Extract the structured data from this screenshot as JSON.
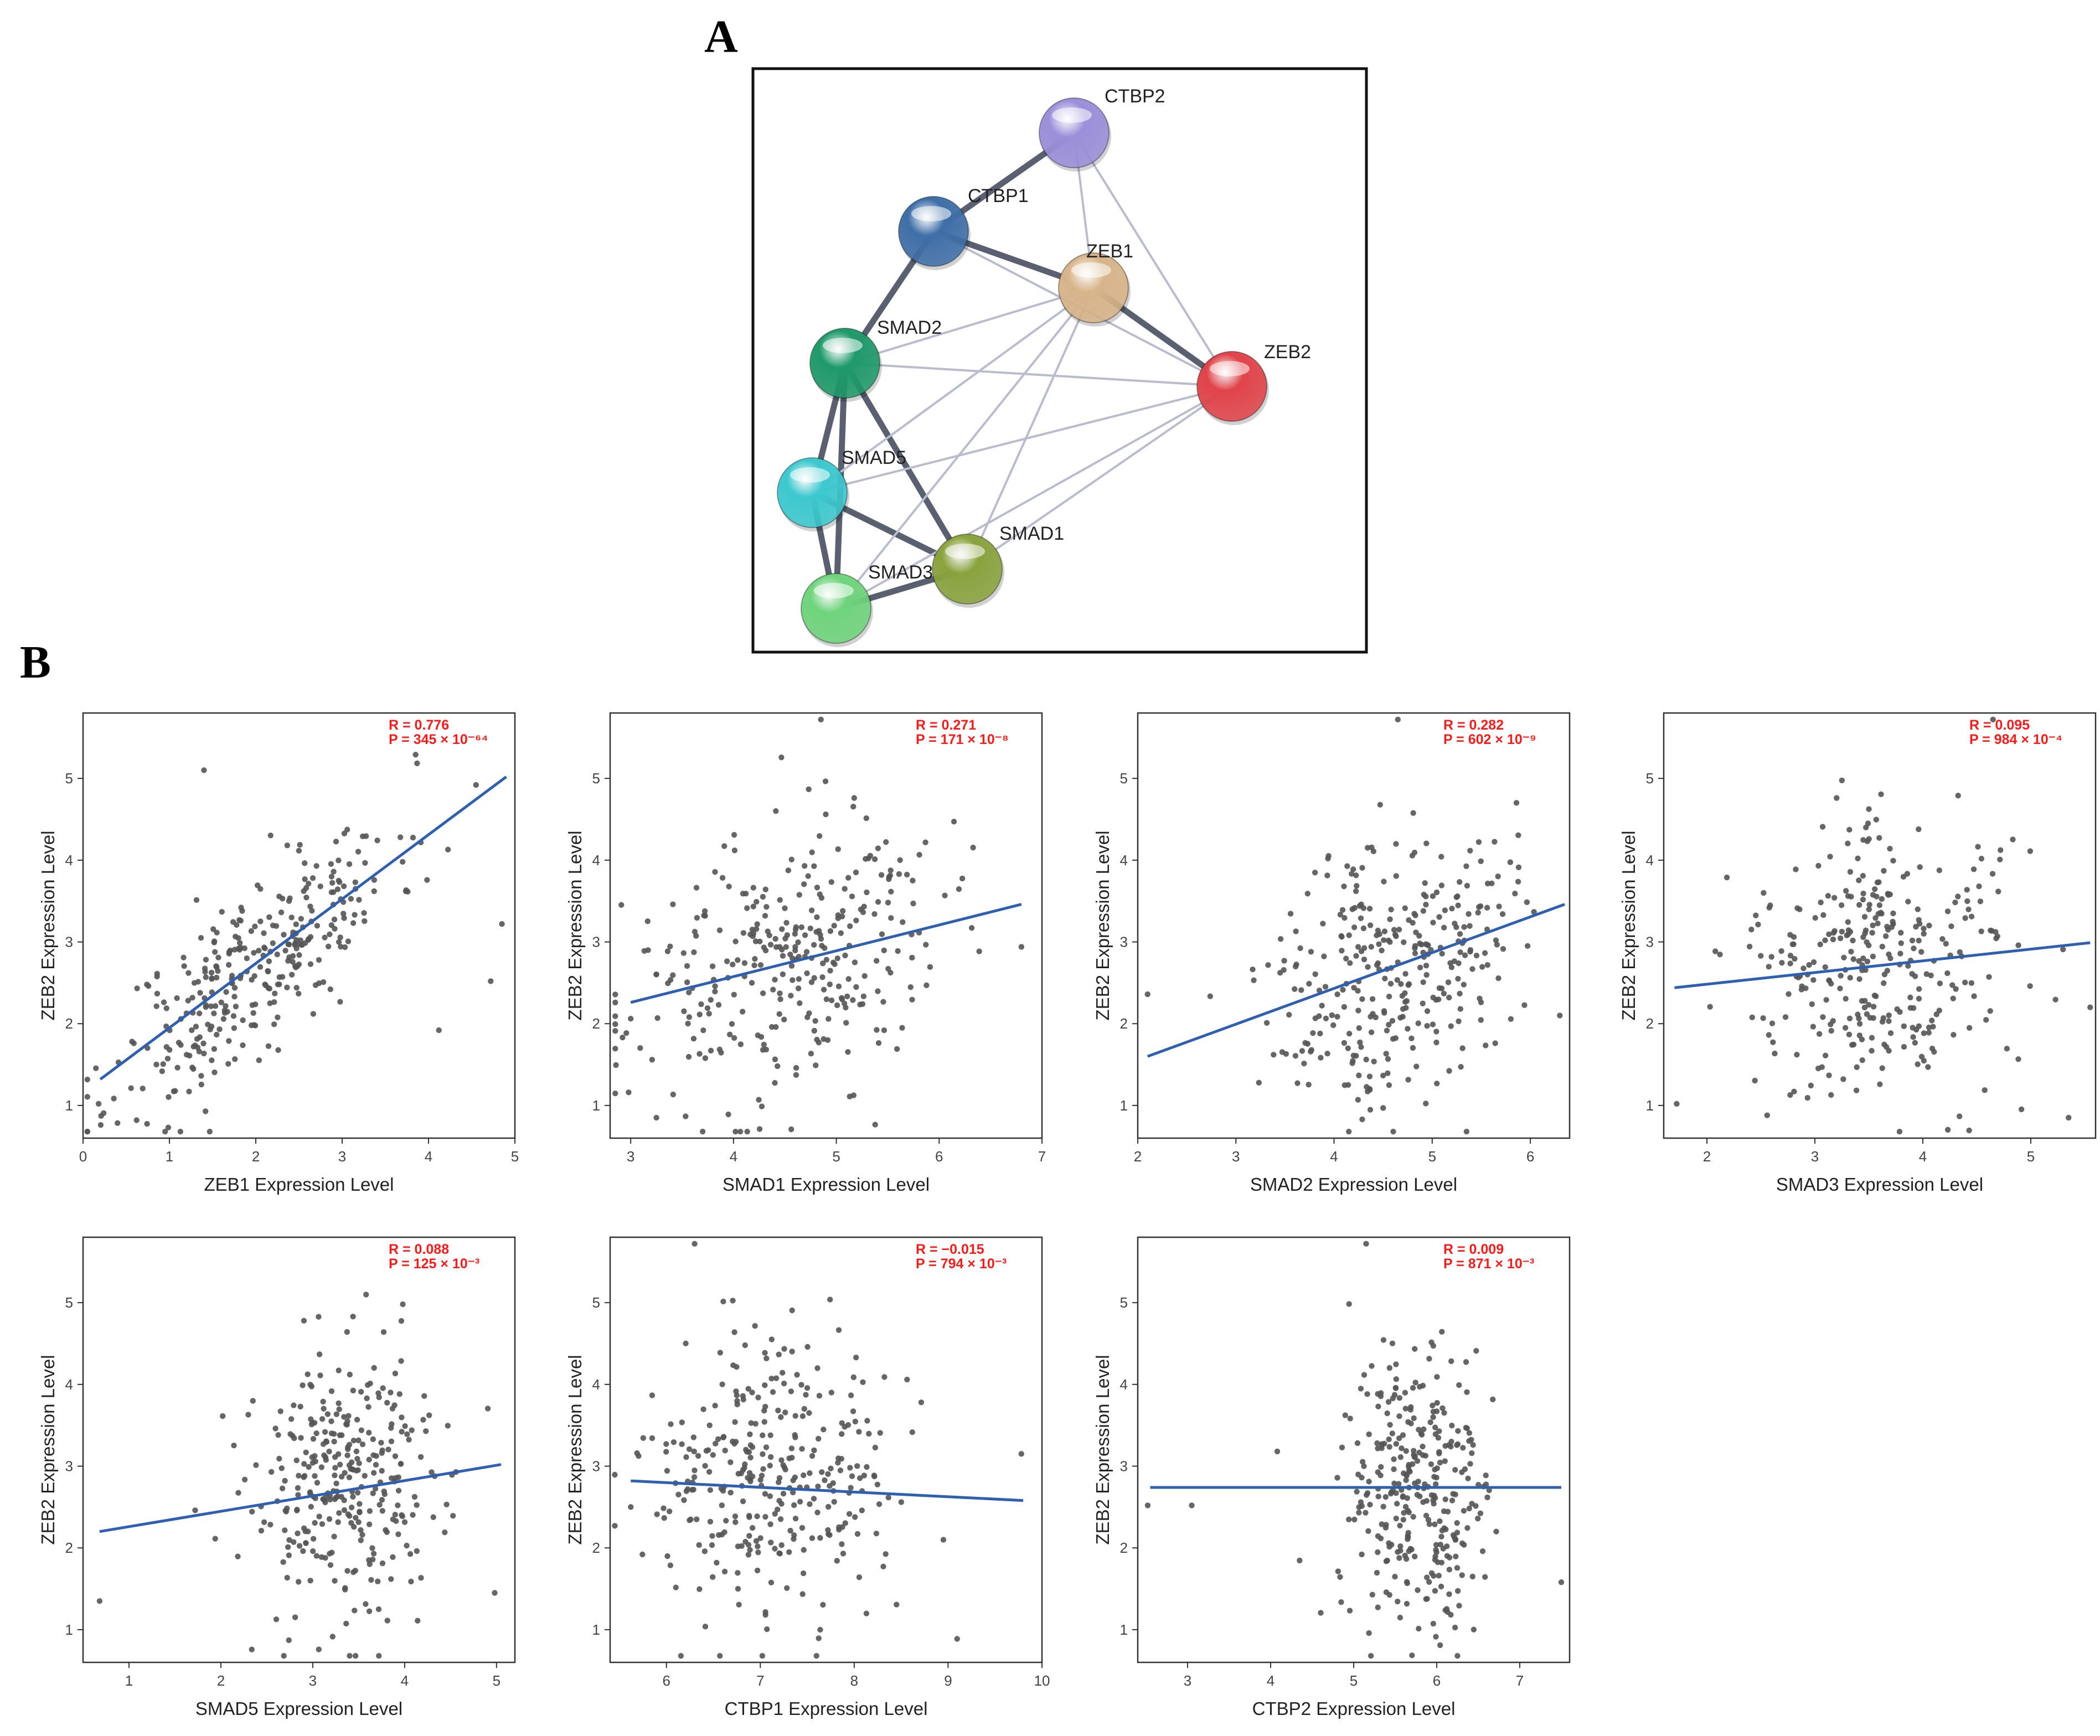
{
  "figure": {
    "panel_a": "A",
    "panel_b": "B"
  },
  "network": {
    "nodes": [
      {
        "id": "CTBP2",
        "label": "CTBP2",
        "color": "#9b8fd9"
      },
      {
        "id": "CTBP1",
        "label": "CTBP1",
        "color": "#3f6fa8"
      },
      {
        "id": "ZEB1",
        "label": "ZEB1",
        "color": "#d8b48a"
      },
      {
        "id": "SMAD2",
        "label": "SMAD2",
        "color": "#1f9a6a"
      },
      {
        "id": "ZEB2",
        "label": "ZEB2",
        "color": "#e0444a"
      },
      {
        "id": "SMAD5",
        "label": "SMAD5",
        "color": "#3cc9cf"
      },
      {
        "id": "SMAD1",
        "label": "SMAD1",
        "color": "#8aa33e"
      },
      {
        "id": "SMAD3",
        "label": "SMAD3",
        "color": "#6fd47c"
      }
    ],
    "edges": [
      {
        "source": "CTBP1",
        "target": "CTBP2",
        "strength": "strong"
      },
      {
        "source": "CTBP1",
        "target": "ZEB1",
        "strength": "strong"
      },
      {
        "source": "CTBP1",
        "target": "SMAD2",
        "strength": "strong"
      },
      {
        "source": "ZEB1",
        "target": "ZEB2",
        "strength": "strong"
      },
      {
        "source": "SMAD2",
        "target": "SMAD5",
        "strength": "strong"
      },
      {
        "source": "SMAD2",
        "target": "SMAD3",
        "strength": "strong"
      },
      {
        "source": "SMAD2",
        "target": "SMAD1",
        "strength": "strong"
      },
      {
        "source": "SMAD5",
        "target": "SMAD3",
        "strength": "strong"
      },
      {
        "source": "SMAD5",
        "target": "SMAD1",
        "strength": "strong"
      },
      {
        "source": "SMAD3",
        "target": "SMAD1",
        "strength": "strong"
      },
      {
        "source": "CTBP2",
        "target": "ZEB1",
        "strength": "weak"
      },
      {
        "source": "CTBP2",
        "target": "ZEB2",
        "strength": "weak"
      },
      {
        "source": "CTBP1",
        "target": "ZEB2",
        "strength": "weak"
      },
      {
        "source": "SMAD2",
        "target": "ZEB1",
        "strength": "weak"
      },
      {
        "source": "SMAD2",
        "target": "ZEB2",
        "strength": "weak"
      },
      {
        "source": "SMAD5",
        "target": "ZEB1",
        "strength": "weak"
      },
      {
        "source": "SMAD5",
        "target": "ZEB2",
        "strength": "weak"
      },
      {
        "source": "SMAD1",
        "target": "ZEB1",
        "strength": "weak"
      },
      {
        "source": "SMAD1",
        "target": "ZEB2",
        "strength": "weak"
      },
      {
        "source": "SMAD3",
        "target": "ZEB1",
        "strength": "weak"
      },
      {
        "source": "SMAD3",
        "target": "ZEB2",
        "strength": "weak"
      }
    ],
    "colors": {
      "strong_edge": "#5a6070",
      "weak_edge": "#b9bccd",
      "frame": "#111111"
    }
  },
  "chart_data": [
    {
      "type": "scatter",
      "xlabel": "ZEB1 Expression Level",
      "ylabel": "ZEB2 Expression Level",
      "r_text": "R = 0.776",
      "p_text": "P = 345 × 10⁻⁶⁴",
      "xlim": [
        0,
        5
      ],
      "ylim": [
        0.6,
        5.8
      ],
      "xticks": [
        0,
        1,
        2,
        3,
        4,
        5
      ],
      "yticks": [
        1,
        2,
        3,
        4,
        5
      ],
      "fit": {
        "x": [
          0.2,
          4.9
        ],
        "y": [
          1.32,
          5.02
        ]
      },
      "points": {
        "n": 320,
        "r": 0.776,
        "xmean": 2.0,
        "xsd": 0.8,
        "ymean": 2.7,
        "ysd": 0.85,
        "seed": 11
      },
      "extra_points": [
        [
          0.18,
          1.02
        ],
        [
          4.85,
          3.22
        ],
        [
          4.72,
          2.52
        ],
        [
          4.55,
          4.92
        ],
        [
          4.12,
          1.92
        ],
        [
          0.62,
          0.82
        ],
        [
          0.95,
          0.68
        ],
        [
          1.4,
          5.1
        ]
      ]
    },
    {
      "type": "scatter",
      "xlabel": "SMAD1 Expression Level",
      "ylabel": "ZEB2 Expression Level",
      "r_text": "R = 0.271",
      "p_text": "P = 171 × 10⁻⁸",
      "xlim": [
        2.8,
        7
      ],
      "ylim": [
        0.6,
        5.8
      ],
      "xticks": [
        3,
        4,
        5,
        6,
        7
      ],
      "yticks": [
        1,
        2,
        3,
        4,
        5
      ],
      "fit": {
        "x": [
          3.0,
          6.8
        ],
        "y": [
          2.26,
          3.46
        ]
      },
      "points": {
        "n": 320,
        "r": 0.271,
        "xmean": 4.5,
        "xsd": 0.75,
        "ymean": 2.75,
        "ysd": 0.85,
        "seed": 23
      },
      "extra_points": [
        [
          4.85,
          5.72
        ],
        [
          2.98,
          1.16
        ],
        [
          6.8,
          2.94
        ],
        [
          3.25,
          0.85
        ]
      ]
    },
    {
      "type": "scatter",
      "xlabel": "SMAD2 Expression Level",
      "ylabel": "ZEB2 Expression Level",
      "r_text": "R = 0.282",
      "p_text": "P = 602 × 10⁻⁹",
      "xlim": [
        2,
        6.4
      ],
      "ylim": [
        0.6,
        5.8
      ],
      "xticks": [
        2,
        3,
        4,
        5,
        6
      ],
      "yticks": [
        1,
        2,
        3,
        4,
        5
      ],
      "fit": {
        "x": [
          2.1,
          6.35
        ],
        "y": [
          1.6,
          3.46
        ]
      },
      "points": {
        "n": 320,
        "r": 0.282,
        "xmean": 4.6,
        "xsd": 0.6,
        "ymean": 2.75,
        "ysd": 0.85,
        "seed": 37
      },
      "extra_points": [
        [
          4.65,
          5.72
        ],
        [
          2.1,
          2.36
        ],
        [
          6.3,
          2.1
        ],
        [
          5.35,
          0.68
        ]
      ]
    },
    {
      "type": "scatter",
      "xlabel": "SMAD3 Expression Level",
      "ylabel": "ZEB2 Expression Level",
      "r_text": "R = 0.095",
      "p_text": "P = 984 × 10⁻⁴",
      "xlim": [
        1.6,
        5.6
      ],
      "ylim": [
        0.6,
        5.8
      ],
      "xticks": [
        2,
        3,
        4,
        5
      ],
      "yticks": [
        1,
        2,
        3,
        4,
        5
      ],
      "fit": {
        "x": [
          1.7,
          5.55
        ],
        "y": [
          2.44,
          2.99
        ]
      },
      "points": {
        "n": 320,
        "r": 0.095,
        "xmean": 3.6,
        "xsd": 0.65,
        "ymean": 2.75,
        "ysd": 0.85,
        "seed": 41
      },
      "extra_points": [
        [
          4.65,
          5.72
        ],
        [
          1.72,
          1.02
        ],
        [
          5.55,
          2.2
        ],
        [
          5.35,
          0.85
        ]
      ]
    },
    {
      "type": "scatter",
      "xlabel": "SMAD5 Expression Level",
      "ylabel": "ZEB2 Expression Level",
      "r_text": "R = 0.088",
      "p_text": "P = 125 × 10⁻³",
      "xlim": [
        0.5,
        5.2
      ],
      "ylim": [
        0.6,
        5.8
      ],
      "xticks": [
        1,
        2,
        3,
        4,
        5
      ],
      "yticks": [
        1,
        2,
        3,
        4,
        5
      ],
      "fit": {
        "x": [
          0.68,
          5.05
        ],
        "y": [
          2.2,
          3.02
        ]
      },
      "points": {
        "n": 320,
        "r": 0.088,
        "xmean": 3.4,
        "xsd": 0.55,
        "ymean": 2.75,
        "ysd": 0.85,
        "seed": 53
      },
      "extra_points": [
        [
          0.68,
          1.35
        ],
        [
          1.72,
          2.46
        ],
        [
          4.98,
          1.45
        ],
        [
          3.98,
          4.98
        ]
      ]
    },
    {
      "type": "scatter",
      "xlabel": "CTBP1 Expression Level",
      "ylabel": "ZEB2 Expression Level",
      "r_text": "R = −0.015",
      "p_text": "P = 794 × 10⁻³",
      "xlim": [
        5.4,
        10
      ],
      "ylim": [
        0.6,
        5.8
      ],
      "xticks": [
        6,
        7,
        8,
        9,
        10
      ],
      "yticks": [
        1,
        2,
        3,
        4,
        5
      ],
      "fit": {
        "x": [
          5.62,
          9.8
        ],
        "y": [
          2.82,
          2.58
        ]
      },
      "points": {
        "n": 320,
        "r": -0.015,
        "xmean": 7.05,
        "xsd": 0.6,
        "ymean": 2.75,
        "ysd": 0.85,
        "seed": 67
      },
      "extra_points": [
        [
          6.3,
          5.72
        ],
        [
          9.78,
          3.15
        ],
        [
          5.62,
          2.5
        ],
        [
          8.95,
          2.1
        ]
      ]
    },
    {
      "type": "scatter",
      "xlabel": "CTBP2 Expression Level",
      "ylabel": "ZEB2 Expression Level",
      "r_text": "R = 0.009",
      "p_text": "P = 871 × 10⁻³",
      "xlim": [
        2.4,
        7.6
      ],
      "ylim": [
        0.6,
        5.8
      ],
      "xticks": [
        3,
        4,
        5,
        6,
        7
      ],
      "yticks": [
        1,
        2,
        3,
        4,
        5
      ],
      "fit": {
        "x": [
          2.55,
          7.5
        ],
        "y": [
          2.74,
          2.74
        ]
      },
      "points": {
        "n": 320,
        "r": 0.009,
        "xmean": 5.75,
        "xsd": 0.45,
        "ymean": 2.75,
        "ysd": 0.85,
        "seed": 79
      },
      "extra_points": [
        [
          5.15,
          5.72
        ],
        [
          2.52,
          2.52
        ],
        [
          3.05,
          2.52
        ],
        [
          7.5,
          1.58
        ],
        [
          4.08,
          3.18
        ]
      ]
    }
  ],
  "style": {
    "point_color": "#555555",
    "fit_color": "#2f5fb0",
    "stat_color": "#ff1a1a",
    "frame_color": "#333333"
  }
}
